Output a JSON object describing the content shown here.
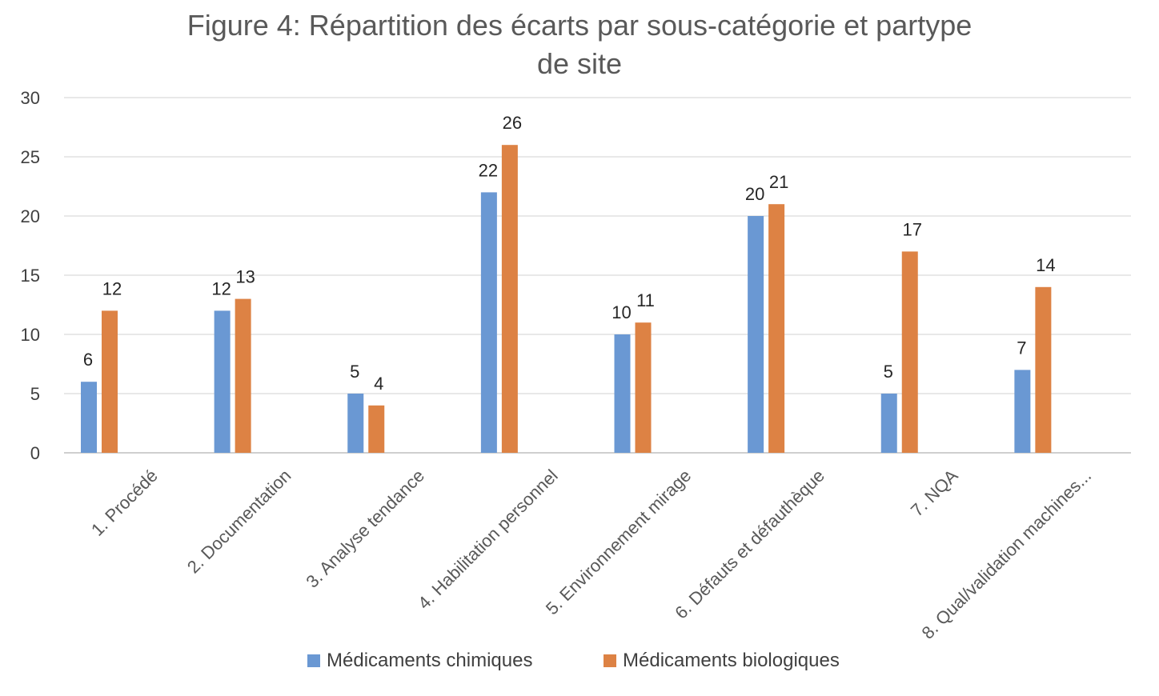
{
  "chart_data": {
    "type": "bar",
    "title_lines": [
      "Figure 4: Répartition des écarts par sous-catégorie et partype",
      "de site"
    ],
    "categories": [
      "1. Procédé",
      "2. Documentation",
      "3. Analyse tendance",
      "4. Habilitation personnel",
      "5. Environnement mirage",
      "6. Défauts et défauthèque",
      "7. NQA",
      "8. Qual/validation machines..."
    ],
    "series": [
      {
        "name": "Médicaments chimiques",
        "color": "#6A98D3",
        "values": [
          6,
          12,
          5,
          22,
          10,
          20,
          5,
          7
        ]
      },
      {
        "name": "Médicaments biologiques",
        "color": "#DD8244",
        "values": [
          12,
          13,
          4,
          26,
          11,
          21,
          17,
          14
        ]
      }
    ],
    "y_ticks": [
      0,
      5,
      10,
      15,
      20,
      25,
      30
    ],
    "ylim": [
      0,
      30
    ],
    "grid": true,
    "legend_position": "bottom"
  }
}
